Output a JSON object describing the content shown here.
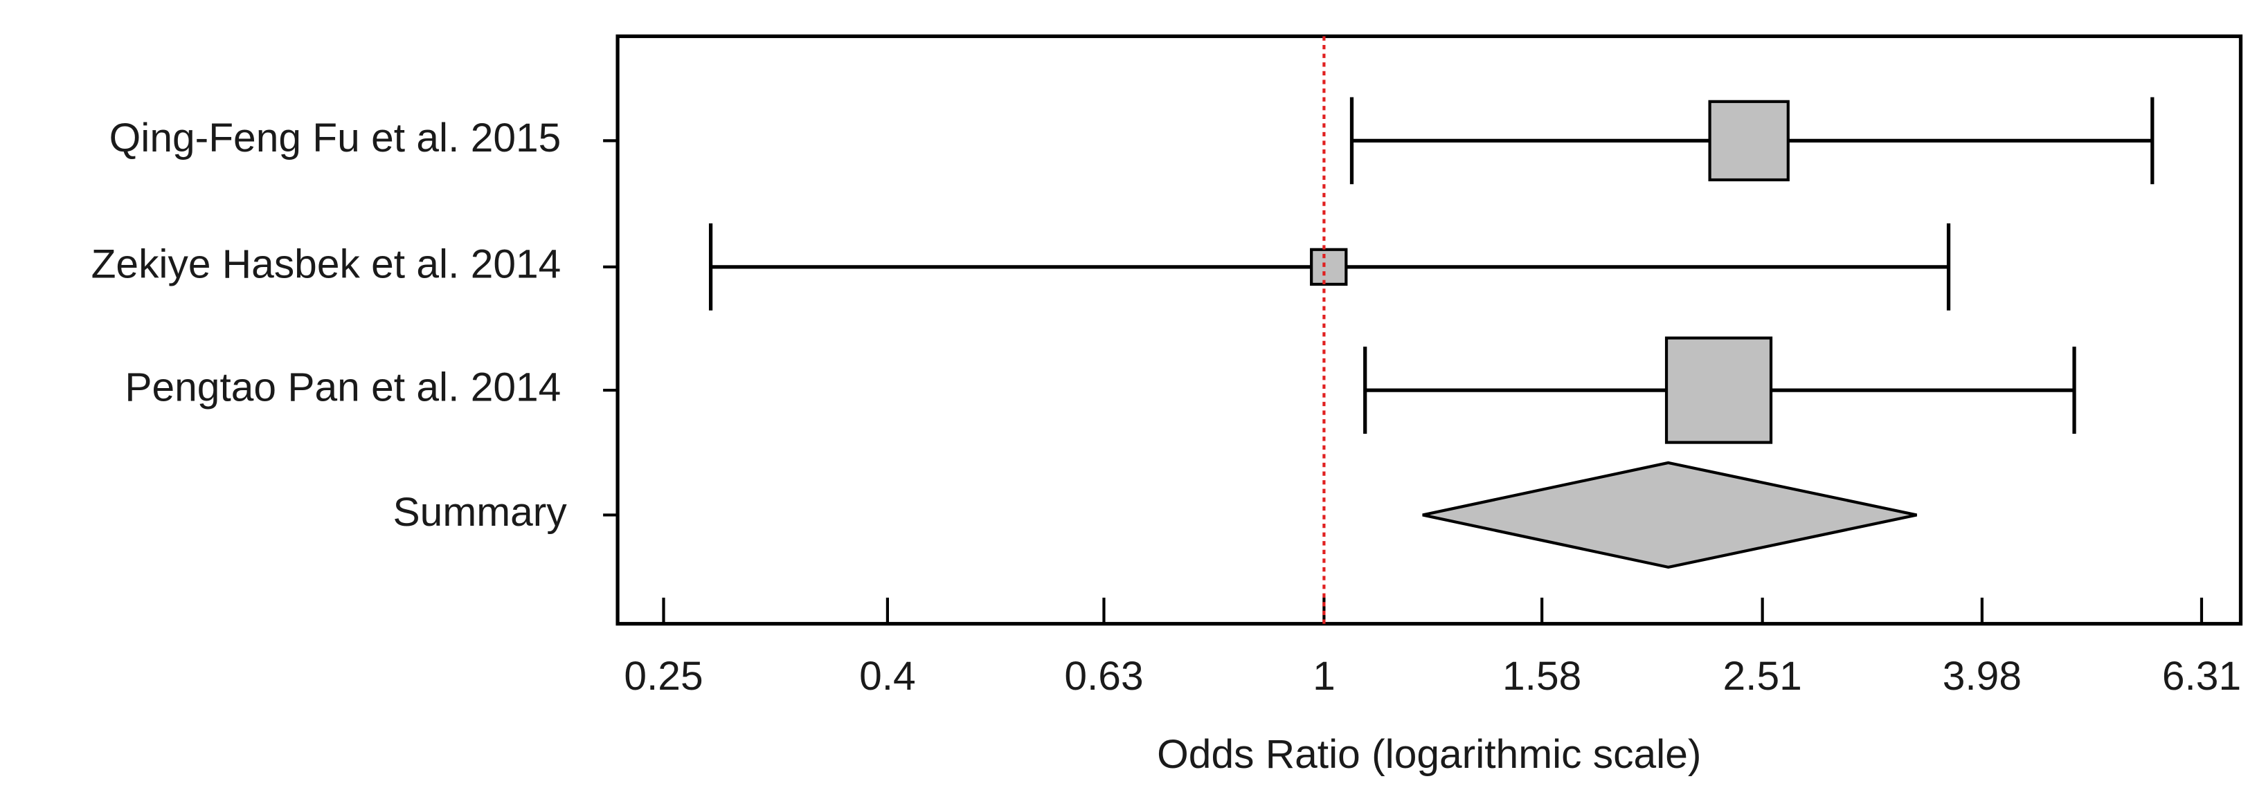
{
  "chart_data": {
    "type": "forest",
    "categories": [
      "Qing-Feng Fu et al. 2015",
      "Zekiye Hasbek et al. 2014",
      "Pengtao Pan et al. 2014"
    ],
    "values": [
      2.44,
      1.01,
      2.29
    ],
    "lower": [
      1.06,
      0.276,
      1.09
    ],
    "upper": [
      5.69,
      3.71,
      4.83
    ],
    "weights": [
      33.6,
      6.6,
      59.8
    ],
    "summary": {
      "label": "Summary",
      "value": 2.06,
      "lower": 1.23,
      "upper": 3.47
    },
    "x_label": "Odds Ratio (logarithmic scale)",
    "xscale": "log",
    "xlim": [
      0.227,
      6.85
    ],
    "xticks": [
      0.25,
      0.4,
      0.63,
      1,
      1.58,
      2.51,
      3.98,
      6.31
    ],
    "reference_line": 1,
    "reference_color": "#e02020",
    "box_color": "#c0c0c0"
  }
}
